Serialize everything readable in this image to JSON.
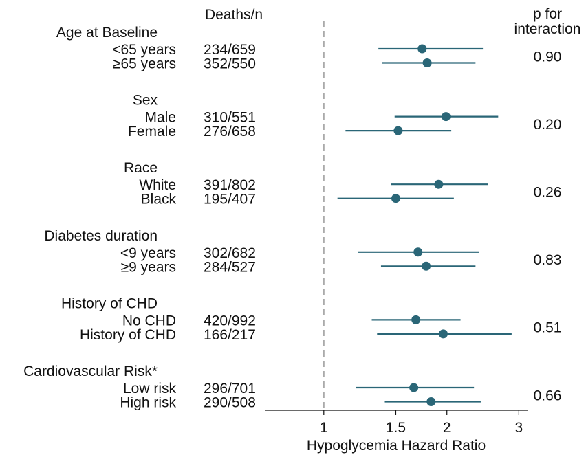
{
  "chart_data": {
    "type": "forest",
    "xlabel": "Hypoglycemia Hazard Ratio",
    "x_scale": "log",
    "xlim": [
      0.72,
      3.15
    ],
    "xticks": [
      1,
      1.5,
      2,
      3
    ],
    "xtick_labels": [
      "1",
      "1.5",
      "2",
      "3"
    ],
    "reference_line": 1,
    "deaths_header": "Deaths/n",
    "p_header": [
      "p for",
      "interaction"
    ],
    "colors": {
      "marker": "#2a6677",
      "reference": "#aaaaaa"
    },
    "groups": [
      {
        "title": "Age at Baseline",
        "p": "0.90",
        "rows": [
          {
            "label": "<65 years",
            "deaths": "234/659",
            "hr": 1.74,
            "lo": 1.36,
            "hi": 2.45
          },
          {
            "label": "≥65 years",
            "deaths": "352/550",
            "hr": 1.79,
            "lo": 1.39,
            "hi": 2.35
          }
        ]
      },
      {
        "title": "Sex",
        "p": "0.20",
        "rows": [
          {
            "label": "Male",
            "deaths": "310/551",
            "hr": 1.99,
            "lo": 1.49,
            "hi": 2.67
          },
          {
            "label": "Female",
            "deaths": "276/658",
            "hr": 1.52,
            "lo": 1.13,
            "hi": 2.05
          }
        ]
      },
      {
        "title": "Race",
        "p": "0.26",
        "rows": [
          {
            "label": "White",
            "deaths": "391/802",
            "hr": 1.91,
            "lo": 1.46,
            "hi": 2.52
          },
          {
            "label": "Black",
            "deaths": "195/407",
            "hr": 1.5,
            "lo": 1.08,
            "hi": 2.08
          }
        ]
      },
      {
        "title": "Diabetes duration",
        "p": "0.83",
        "rows": [
          {
            "label": "<9 years",
            "deaths": "302/682",
            "hr": 1.7,
            "lo": 1.21,
            "hi": 2.4
          },
          {
            "label": "≥9 years",
            "deaths": "284/527",
            "hr": 1.78,
            "lo": 1.38,
            "hi": 2.35
          }
        ]
      },
      {
        "title": "History of CHD",
        "p": "0.51",
        "rows": [
          {
            "label": "No CHD",
            "deaths": "420/992",
            "hr": 1.68,
            "lo": 1.31,
            "hi": 2.16
          },
          {
            "label": "History of CHD",
            "deaths": "166/217",
            "hr": 1.96,
            "lo": 1.35,
            "hi": 2.88
          }
        ]
      },
      {
        "title": "Cardiovascular Risk*",
        "p": "0.66",
        "rows": [
          {
            "label": "Low risk",
            "deaths": "296/701",
            "hr": 1.66,
            "lo": 1.2,
            "hi": 2.33
          },
          {
            "label": "High risk",
            "deaths": "290/508",
            "hr": 1.83,
            "lo": 1.41,
            "hi": 2.42
          }
        ]
      }
    ]
  }
}
